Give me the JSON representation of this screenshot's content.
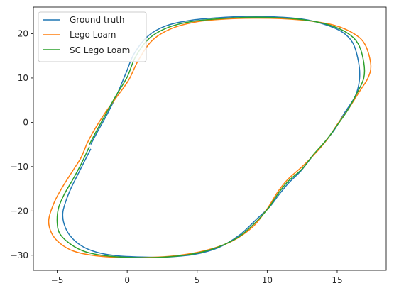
{
  "chart_data": {
    "type": "line",
    "title": "",
    "xlabel": "",
    "ylabel": "",
    "xlim": [
      -6.7,
      18.5
    ],
    "ylim": [
      -33.4,
      26.0
    ],
    "xticks": [
      -5,
      0,
      5,
      10,
      15
    ],
    "yticks": [
      -30,
      -20,
      -10,
      0,
      10,
      20
    ],
    "grid": false,
    "legend_position": "top-left",
    "series": [
      {
        "name": "Ground truth",
        "color": "#1f77b4",
        "x": [
          -2.6,
          -2.1,
          -1.4,
          -0.7,
          -0.1,
          0.5,
          1.5,
          2.8,
          4.5,
          6.5,
          8.5,
          10.5,
          12.5,
          14.0,
          15.3,
          16.1,
          16.5,
          16.6,
          16.3,
          15.5,
          14.8,
          14.1,
          13.2,
          12.4,
          11.5,
          10.8,
          10.2,
          9.2,
          8.0,
          6.5,
          4.8,
          2.8,
          1.0,
          -0.8,
          -2.2,
          -3.3,
          -4.1,
          -4.5,
          -4.6,
          -4.4,
          -4.0,
          -3.4,
          -2.6
        ],
        "y": [
          -5.0,
          -2.0,
          2.0,
          6.5,
          11.0,
          15.5,
          19.5,
          21.8,
          23.0,
          23.6,
          23.9,
          23.8,
          23.3,
          22.2,
          20.5,
          18.0,
          14.0,
          10.0,
          6.0,
          2.0,
          -1.7,
          -4.5,
          -7.8,
          -11.0,
          -13.8,
          -16.5,
          -19.0,
          -22.0,
          -25.5,
          -28.3,
          -29.8,
          -30.4,
          -30.4,
          -30.1,
          -29.3,
          -27.8,
          -25.5,
          -23.0,
          -20.5,
          -18.0,
          -14.8,
          -11.0,
          -6.0
        ]
      },
      {
        "name": "Lego Loam",
        "color": "#ff7f0e",
        "x": [
          -2.9,
          -2.4,
          -1.6,
          -0.8,
          0.1,
          0.8,
          1.8,
          3.2,
          5.0,
          7.0,
          9.0,
          11.0,
          13.0,
          14.8,
          16.2,
          17.0,
          17.4,
          17.2,
          16.6,
          15.8,
          15.0,
          14.3,
          13.5,
          12.5,
          11.5,
          10.8,
          10.0,
          9.0,
          7.5,
          5.5,
          3.5,
          1.5,
          -0.5,
          -2.3,
          -3.8,
          -4.8,
          -5.4,
          -5.6,
          -5.2,
          -4.6,
          -3.9,
          -3.3,
          -2.9
        ],
        "y": [
          -5.0,
          -2.0,
          2.0,
          5.5,
          9.5,
          14.0,
          18.5,
          21.2,
          22.7,
          23.3,
          23.5,
          23.4,
          22.9,
          21.9,
          20.0,
          17.5,
          13.0,
          10.0,
          7.0,
          3.0,
          -0.5,
          -3.8,
          -6.8,
          -10.0,
          -12.8,
          -15.5,
          -19.5,
          -23.5,
          -26.8,
          -29.0,
          -30.1,
          -30.5,
          -30.5,
          -30.1,
          -29.1,
          -27.3,
          -25.0,
          -22.0,
          -18.0,
          -14.5,
          -11.0,
          -8.0,
          -5.0
        ]
      },
      {
        "name": "SC Lego Loam",
        "color": "#2ca02c",
        "x": [
          -2.7,
          -2.2,
          -1.5,
          -0.8,
          0.0,
          0.6,
          1.6,
          3.0,
          4.7,
          6.7,
          8.7,
          10.7,
          12.7,
          14.4,
          15.7,
          16.5,
          16.9,
          16.9,
          16.4,
          15.7,
          14.9,
          14.2,
          13.3,
          12.5,
          11.5,
          10.8,
          10.1,
          9.1,
          7.8,
          6.0,
          4.1,
          2.1,
          0.2,
          -1.6,
          -3.0,
          -4.0,
          -4.8,
          -5.0,
          -4.9,
          -4.5,
          -3.9,
          -3.3,
          -2.7
        ],
        "y": [
          -5.0,
          -2.0,
          2.0,
          6.0,
          10.2,
          14.8,
          19.0,
          21.5,
          22.8,
          23.4,
          23.7,
          23.6,
          23.1,
          22.0,
          20.2,
          17.7,
          13.5,
          10.0,
          6.5,
          2.5,
          -1.1,
          -4.1,
          -7.3,
          -10.5,
          -13.3,
          -16.0,
          -19.3,
          -22.8,
          -26.2,
          -28.7,
          -30.0,
          -30.5,
          -30.5,
          -30.1,
          -29.2,
          -27.6,
          -25.2,
          -22.5,
          -19.3,
          -16.3,
          -13.0,
          -9.5,
          -5.5
        ]
      }
    ]
  }
}
